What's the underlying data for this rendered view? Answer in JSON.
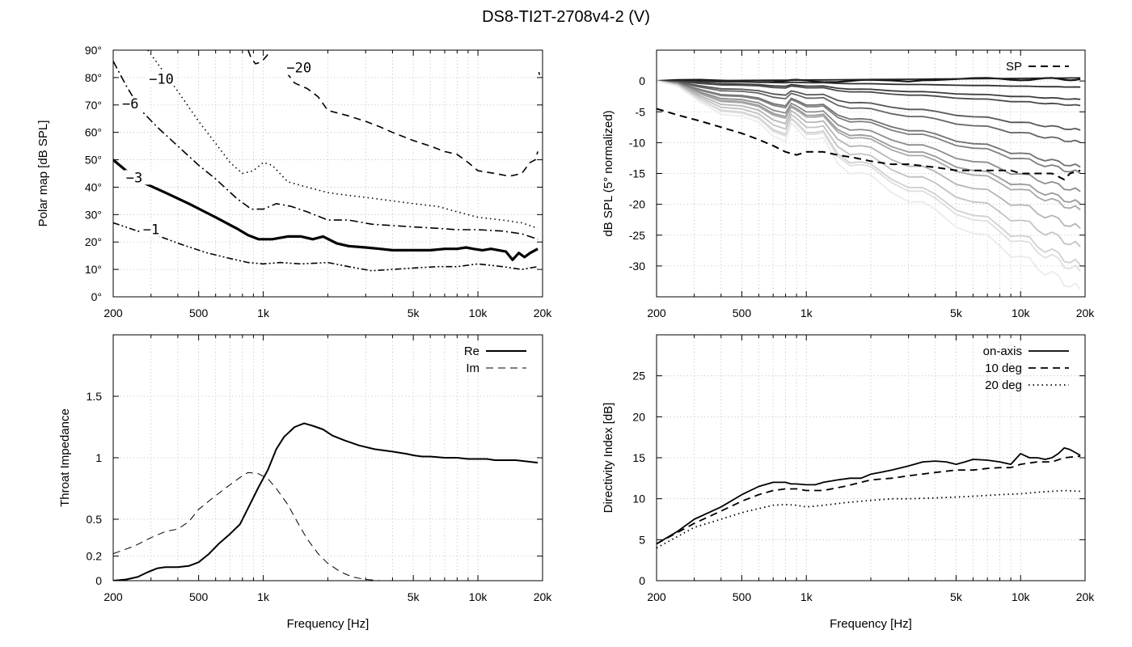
{
  "figure_title": "DS8-TI2T-2708v4-2 (V)",
  "chart_data": [
    {
      "id": "polar",
      "type": "line",
      "title": "",
      "xlabel": "",
      "ylabel": "Polar map [dB SPL]",
      "xscale": "log",
      "xlim": [
        200,
        20000
      ],
      "ylim": [
        0,
        90
      ],
      "xticks": [
        200,
        500,
        1000,
        5000,
        10000,
        20000
      ],
      "xtick_labels": [
        "200",
        "500",
        "1k",
        "5k",
        "10k",
        "20k"
      ],
      "yticks": [
        0,
        10,
        20,
        30,
        40,
        50,
        60,
        70,
        80,
        90
      ],
      "ytick_labels": [
        "0°",
        "10°",
        "20°",
        "30°",
        "40°",
        "50°",
        "60°",
        "70°",
        "80°",
        "90°"
      ],
      "grid": true,
      "series": [
        {
          "name": "-1",
          "style": "dash-dot-dot",
          "width": 1.6,
          "x": [
            200,
            260,
            330,
            420,
            550,
            700,
            850,
            1000,
            1200,
            1500,
            2000,
            2500,
            3200,
            4000,
            5000,
            6500,
            8000,
            10000,
            13000,
            16000,
            19000
          ],
          "y": [
            27,
            24,
            22,
            19,
            16,
            14,
            12.5,
            12,
            12.5,
            12,
            12.5,
            11,
            9.5,
            10,
            10.5,
            11,
            11,
            12,
            11,
            10,
            11
          ]
        },
        {
          "name": "-3",
          "style": "solid",
          "width": 3.2,
          "x": [
            200,
            230,
            270,
            350,
            450,
            600,
            750,
            850,
            950,
            1100,
            1300,
            1500,
            1700,
            1900,
            2200,
            2500,
            3000,
            3500,
            4000,
            5000,
            6000,
            7000,
            8000,
            8800,
            9500,
            10500,
            11500,
            12500,
            13500,
            14500,
            15500,
            16500,
            17500,
            19000
          ],
          "y": [
            50,
            46,
            42,
            38,
            34,
            29,
            25,
            22.5,
            21,
            21,
            22,
            22,
            21,
            22,
            19.5,
            18.5,
            18,
            17.5,
            17,
            17,
            17,
            17.5,
            17.5,
            18,
            17.5,
            17,
            17.5,
            17,
            16.5,
            13.5,
            16,
            14.5,
            16,
            17.5
          ]
        },
        {
          "name": "-6",
          "style": "dash-dot",
          "width": 1.6,
          "x": [
            200,
            230,
            270,
            320,
            400,
            500,
            600,
            750,
            880,
            1000,
            1150,
            1350,
            1600,
            2000,
            2500,
            3200,
            4000,
            5000,
            6500,
            8000,
            10000,
            13000,
            16000,
            19000
          ],
          "y": [
            86,
            77,
            68,
            62,
            55,
            48,
            43,
            36,
            32,
            32,
            34,
            33,
            31,
            28,
            28,
            26.5,
            26,
            25.5,
            25,
            24.5,
            24.5,
            24,
            23,
            21
          ]
        },
        {
          "name": "-10",
          "style": "dotted",
          "width": 1.6,
          "x": [
            290,
            400,
            500,
            600,
            700,
            800,
            900,
            1000,
            1100,
            1300,
            1600,
            2000,
            2500,
            3200,
            4000,
            5000,
            6500,
            8000,
            10000,
            13000,
            16000,
            19000
          ],
          "y": [
            90,
            75,
            64,
            56,
            49,
            45,
            46,
            49,
            48,
            42,
            40,
            38,
            37,
            36,
            35,
            34,
            33,
            31,
            29,
            28,
            27,
            25
          ]
        },
        {
          "name": "-20",
          "style": "dashed",
          "width": 1.6,
          "x": [
            1280,
            1400,
            1600,
            1800,
            2000,
            2500,
            3000,
            3500,
            4000,
            5000,
            6000,
            7000,
            8000,
            9000,
            10000,
            12000,
            14000,
            16000,
            17500,
            18500,
            19000
          ],
          "y": [
            82,
            78,
            76,
            73,
            68,
            66,
            64,
            62,
            60,
            57,
            55,
            53,
            52,
            49,
            46,
            45,
            44,
            45,
            49,
            50,
            53
          ]
        },
        {
          "name": "-20",
          "style": "dashed",
          "width": 1.6,
          "x": [
            850,
            880,
            920,
            960,
            1000,
            1040,
            1080,
            1120,
            1200
          ],
          "y": [
            90,
            87,
            85,
            85.5,
            86.5,
            88,
            90,
            91,
            90
          ]
        },
        {
          "name": "-20",
          "style": "dashed",
          "width": 1.6,
          "x": [
            19200,
            19400
          ],
          "y": [
            82,
            81
          ]
        }
      ],
      "contour_labels": [
        {
          "text": "-1",
          "x": 300,
          "y": 24
        },
        {
          "text": "-3",
          "x": 250,
          "y": 43
        },
        {
          "text": "-6",
          "x": 240,
          "y": 70
        },
        {
          "text": "-10",
          "x": 320,
          "y": 79
        },
        {
          "text": "-20",
          "x": 1400,
          "y": 83
        }
      ]
    },
    {
      "id": "normalized",
      "type": "line",
      "title": "",
      "xlabel": "",
      "ylabel": "dB SPL (5° normalized)",
      "xscale": "log",
      "xlim": [
        200,
        20000
      ],
      "ylim": [
        -35,
        5
      ],
      "xticks": [
        200,
        500,
        1000,
        5000,
        10000,
        20000
      ],
      "xtick_labels": [
        "200",
        "500",
        "1k",
        "5k",
        "10k",
        "20k"
      ],
      "yticks": [
        0,
        -5,
        -10,
        -15,
        -20,
        -25,
        -30
      ],
      "ytick_labels": [
        "0",
        "-5",
        "-10",
        "-15",
        "-20",
        "-25",
        "-30"
      ],
      "grid": true,
      "legend": {
        "entries": [
          "SP"
        ],
        "position": "top-right"
      },
      "fan_curves": {
        "count": 17,
        "x": [
          200,
          250,
          320,
          400,
          500,
          600,
          700,
          800,
          850,
          900,
          1000,
          1100,
          1200,
          1400,
          1600,
          1800,
          2000,
          2500,
          3000,
          3500,
          4000,
          5000,
          6000,
          7000,
          8000,
          9000,
          10000,
          11000,
          12000,
          13000,
          14000,
          15000,
          16000,
          17000,
          18000,
          19000
        ],
        "curve_offsets_at_19k": [
          0.5,
          0.5,
          -1,
          -3,
          -4,
          -8,
          -10,
          -14,
          -15,
          -18,
          -20,
          -21,
          -24,
          -27,
          -30,
          -31,
          -34
        ]
      },
      "series": [
        {
          "name": "SP",
          "style": "dashed",
          "width": 2,
          "x": [
            200,
            250,
            320,
            400,
            500,
            600,
            700,
            800,
            900,
            1000,
            1200,
            1400,
            1700,
            2000,
            2500,
            3000,
            4000,
            5000,
            6500,
            8000,
            9000,
            10000,
            12000,
            14000,
            15000,
            16000,
            17000,
            19000
          ],
          "y": [
            -4.5,
            -5.5,
            -6.5,
            -7.5,
            -8.5,
            -9.5,
            -10.5,
            -11.5,
            -12,
            -11.5,
            -11.5,
            -12,
            -12.5,
            -13,
            -13.5,
            -13.5,
            -14,
            -14.5,
            -14.5,
            -14.5,
            -14.5,
            -15,
            -15,
            -15,
            -15.5,
            -16,
            -15,
            -14.5
          ]
        }
      ]
    },
    {
      "id": "impedance",
      "type": "line",
      "title": "",
      "xlabel": "Frequency [Hz]",
      "ylabel": "Throat Impedance",
      "xscale": "log",
      "xlim": [
        200,
        20000
      ],
      "ylim": [
        0,
        2
      ],
      "xticks": [
        200,
        500,
        1000,
        5000,
        10000,
        20000
      ],
      "xtick_labels": [
        "200",
        "500",
        "1k",
        "5k",
        "10k",
        "20k"
      ],
      "yticks": [
        0,
        0.2,
        0.5,
        1,
        1.5
      ],
      "ytick_labels": [
        "0",
        "0.2",
        "0.5",
        "1",
        "1.5"
      ],
      "grid": true,
      "legend": {
        "entries": [
          "Re",
          "Im"
        ],
        "position": "top-right"
      },
      "series": [
        {
          "name": "Re",
          "style": "solid",
          "width": 2,
          "x": [
            200,
            230,
            260,
            290,
            320,
            350,
            400,
            450,
            500,
            560,
            620,
            700,
            780,
            850,
            950,
            1050,
            1150,
            1250,
            1400,
            1550,
            1700,
            1900,
            2100,
            2400,
            2800,
            3300,
            4000,
            4700,
            5000,
            5500,
            6000,
            7000,
            8000,
            9000,
            10000,
            11000,
            12000,
            13000,
            14000,
            15000,
            17000,
            19000
          ],
          "y": [
            0,
            0.01,
            0.03,
            0.07,
            0.1,
            0.11,
            0.11,
            0.12,
            0.15,
            0.22,
            0.3,
            0.38,
            0.46,
            0.59,
            0.76,
            0.9,
            1.07,
            1.17,
            1.25,
            1.28,
            1.26,
            1.23,
            1.18,
            1.14,
            1.1,
            1.07,
            1.05,
            1.03,
            1.02,
            1.01,
            1.01,
            1,
            1,
            0.99,
            0.99,
            0.99,
            0.98,
            0.98,
            0.98,
            0.98,
            0.97,
            0.96
          ]
        },
        {
          "name": "Im",
          "style": "dashed",
          "width": 1,
          "x": [
            200,
            250,
            300,
            350,
            400,
            450,
            500,
            560,
            630,
            700,
            780,
            850,
            950,
            1050,
            1150,
            1300,
            1450,
            1600,
            1800,
            2000,
            2300,
            2600,
            3000,
            3500,
            4000,
            4400
          ],
          "y": [
            0.22,
            0.28,
            0.35,
            0.4,
            0.42,
            0.48,
            0.58,
            0.65,
            0.72,
            0.78,
            0.84,
            0.88,
            0.87,
            0.83,
            0.75,
            0.62,
            0.47,
            0.34,
            0.22,
            0.14,
            0.07,
            0.03,
            0.01,
            0,
            -0.01,
            0
          ]
        }
      ]
    },
    {
      "id": "directivity",
      "type": "line",
      "title": "",
      "xlabel": "Frequency [Hz]",
      "ylabel": "Directivity Index [dB]",
      "xscale": "log",
      "xlim": [
        200,
        20000
      ],
      "ylim": [
        0,
        30
      ],
      "xticks": [
        200,
        500,
        1000,
        5000,
        10000,
        20000
      ],
      "xtick_labels": [
        "200",
        "500",
        "1k",
        "5k",
        "10k",
        "20k"
      ],
      "yticks": [
        0,
        5,
        10,
        15,
        20,
        25
      ],
      "ytick_labels": [
        "0",
        "5",
        "10",
        "15",
        "20",
        "25"
      ],
      "grid": true,
      "legend": {
        "entries": [
          "on-axis",
          "10 deg",
          "20 deg"
        ],
        "position": "top-right"
      },
      "series": [
        {
          "name": "on-axis",
          "style": "solid",
          "width": 1.8,
          "x": [
            200,
            250,
            300,
            400,
            500,
            600,
            700,
            800,
            850,
            900,
            1000,
            1100,
            1200,
            1400,
            1600,
            1800,
            2000,
            2200,
            2500,
            3000,
            3500,
            4000,
            4500,
            5000,
            5500,
            6000,
            7000,
            8000,
            9000,
            10000,
            11000,
            12000,
            13000,
            14000,
            15000,
            16000,
            17000,
            19000
          ],
          "y": [
            4.5,
            6,
            7.5,
            9,
            10.5,
            11.5,
            12,
            12,
            11.8,
            11.8,
            11.7,
            11.7,
            12,
            12.3,
            12.5,
            12.5,
            13,
            13.2,
            13.5,
            14,
            14.5,
            14.6,
            14.5,
            14.2,
            14.5,
            14.8,
            14.7,
            14.5,
            14.2,
            15.5,
            15,
            15,
            14.8,
            15,
            15.5,
            16.2,
            16,
            15.3
          ]
        },
        {
          "name": "10 deg",
          "style": "dashed",
          "width": 1.8,
          "x": [
            200,
            300,
            400,
            500,
            600,
            700,
            800,
            900,
            1000,
            1200,
            1500,
            1800,
            2000,
            2500,
            3000,
            4000,
            5000,
            6000,
            7000,
            8000,
            9000,
            10000,
            12000,
            14000,
            16000,
            19000
          ],
          "y": [
            4.5,
            7,
            8.5,
            9.7,
            10.5,
            11,
            11.2,
            11.2,
            11,
            11,
            11.5,
            12,
            12.3,
            12.5,
            12.8,
            13.2,
            13.5,
            13.5,
            13.7,
            13.8,
            13.8,
            14.2,
            14.5,
            14.5,
            15,
            15.2
          ]
        },
        {
          "name": "20 deg",
          "style": "dotted",
          "width": 1.8,
          "x": [
            200,
            300,
            400,
            500,
            600,
            700,
            800,
            900,
            1000,
            1200,
            1500,
            2000,
            2500,
            3000,
            4000,
            5000,
            6000,
            7000,
            8000,
            10000,
            12000,
            14000,
            16000,
            19000
          ],
          "y": [
            4,
            6.5,
            7.5,
            8.3,
            8.8,
            9.2,
            9.3,
            9.2,
            9,
            9.2,
            9.5,
            9.8,
            10,
            10,
            10.1,
            10.2,
            10.3,
            10.4,
            10.5,
            10.6,
            10.8,
            10.9,
            11,
            10.9
          ]
        }
      ]
    }
  ]
}
